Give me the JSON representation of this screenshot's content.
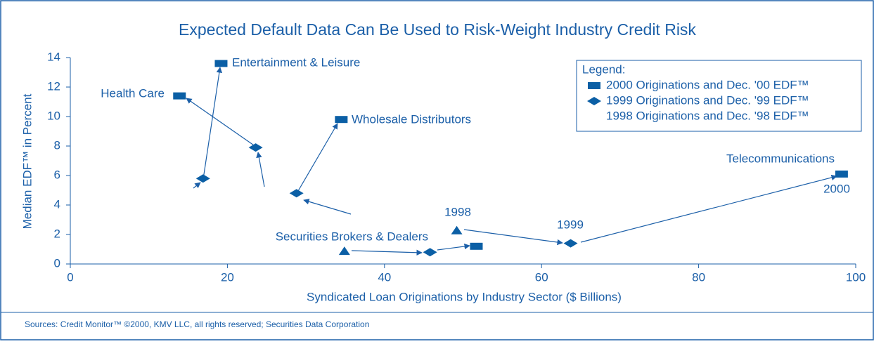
{
  "chart_data": {
    "type": "scatter",
    "title": "Expected Default Data Can Be Used to Risk-Weight Industry Credit Risk",
    "x_label": "Syndicated Loan Originations by Industry Sector ($ Billions)",
    "y_label": "Median EDF™ in Percent",
    "legend_title": "Legend:",
    "source": "Sources: Credit Monitor™ ©2000, KMV LLC, all rights reserved; Securities Data Corporation",
    "xlim": [
      0,
      100
    ],
    "xticks": [
      0,
      20,
      40,
      60,
      80,
      100
    ],
    "ylim": [
      0,
      14
    ],
    "yticks": [
      0,
      2,
      4,
      6,
      8,
      10,
      12,
      14
    ],
    "series": [
      {
        "name": "2000 Originations and Dec. '00 EDF™",
        "marker": "rect",
        "color": "#0b5fa5",
        "x": [
          19.2,
          13.9,
          34.5,
          51.7,
          98.2
        ],
        "values": [
          13.6,
          11.4,
          9.8,
          1.2,
          6.1
        ]
      },
      {
        "name": "1999 Originations and Dec. '99 EDF™",
        "marker": "diamond",
        "color": "#0b5fa5",
        "x": [
          16.9,
          23.6,
          28.8,
          45.8,
          63.7
        ],
        "values": [
          5.8,
          7.9,
          4.8,
          0.8,
          1.4
        ]
      },
      {
        "name": "1998 Originations and Dec. '98 EDF™",
        "marker": "triangle",
        "color": "#0b5fa5",
        "x": [
          34.9,
          49.2
        ],
        "values": [
          0.9,
          2.3
        ]
      }
    ],
    "annotations": [
      "Entertainment & Leisure",
      "Health Care",
      "Wholesale Distributors",
      "Securities Brokers & Dealers",
      "Telecommunications",
      "1998",
      "1999",
      "2000"
    ]
  }
}
